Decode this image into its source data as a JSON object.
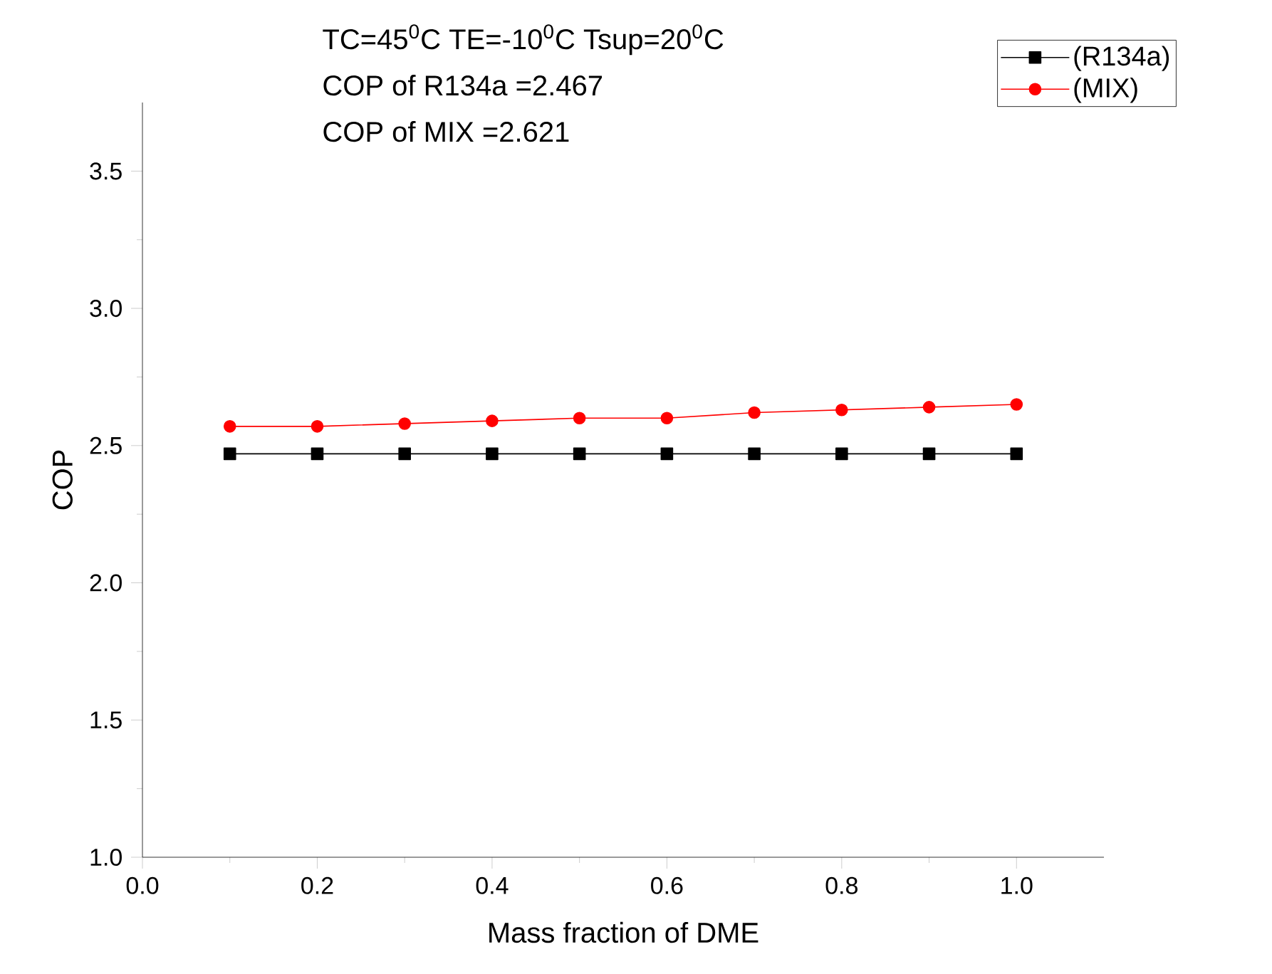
{
  "chart_data": {
    "type": "line",
    "xlabel": "Mass fraction of DME",
    "ylabel": "COP",
    "annotations": [
      "TC=45$^{0}$C TE=-10$^{0}$C Tsup=20$^{0}$C",
      "COP of R134a =2.467",
      "COP of MIX      =2.621"
    ],
    "x": [
      0.1,
      0.2,
      0.3,
      0.4,
      0.5,
      0.6,
      0.7,
      0.8,
      0.9,
      1.0
    ],
    "series": [
      {
        "name": "(R134a)",
        "color": "#000000",
        "marker": "square",
        "values": [
          2.47,
          2.47,
          2.47,
          2.47,
          2.47,
          2.47,
          2.47,
          2.47,
          2.47,
          2.47
        ]
      },
      {
        "name": "(MIX)",
        "color": "#ff0000",
        "marker": "circle",
        "values": [
          2.57,
          2.57,
          2.58,
          2.59,
          2.6,
          2.6,
          2.62,
          2.63,
          2.64,
          2.65
        ]
      }
    ],
    "xlim": [
      0,
      1.1
    ],
    "ylim": [
      1,
      3.75
    ],
    "xticks": [
      {
        "value": 0,
        "label": "0.0"
      },
      {
        "value": 0.2,
        "label": "0.2"
      },
      {
        "value": 0.4,
        "label": "0.4"
      },
      {
        "value": 0.6,
        "label": "0.6"
      },
      {
        "value": 0.8,
        "label": "0.8"
      },
      {
        "value": 1,
        "label": "1.0"
      }
    ],
    "yticks": [
      {
        "value": 1,
        "label": "1.0"
      },
      {
        "value": 1.5,
        "label": "1.5"
      },
      {
        "value": 2,
        "label": "2.0"
      },
      {
        "value": 2.5,
        "label": "2.5"
      },
      {
        "value": 3,
        "label": "3.0"
      },
      {
        "value": 3.5,
        "label": "3.5"
      }
    ],
    "legend": "top right",
    "grid": false,
    "line_style": "solid"
  }
}
